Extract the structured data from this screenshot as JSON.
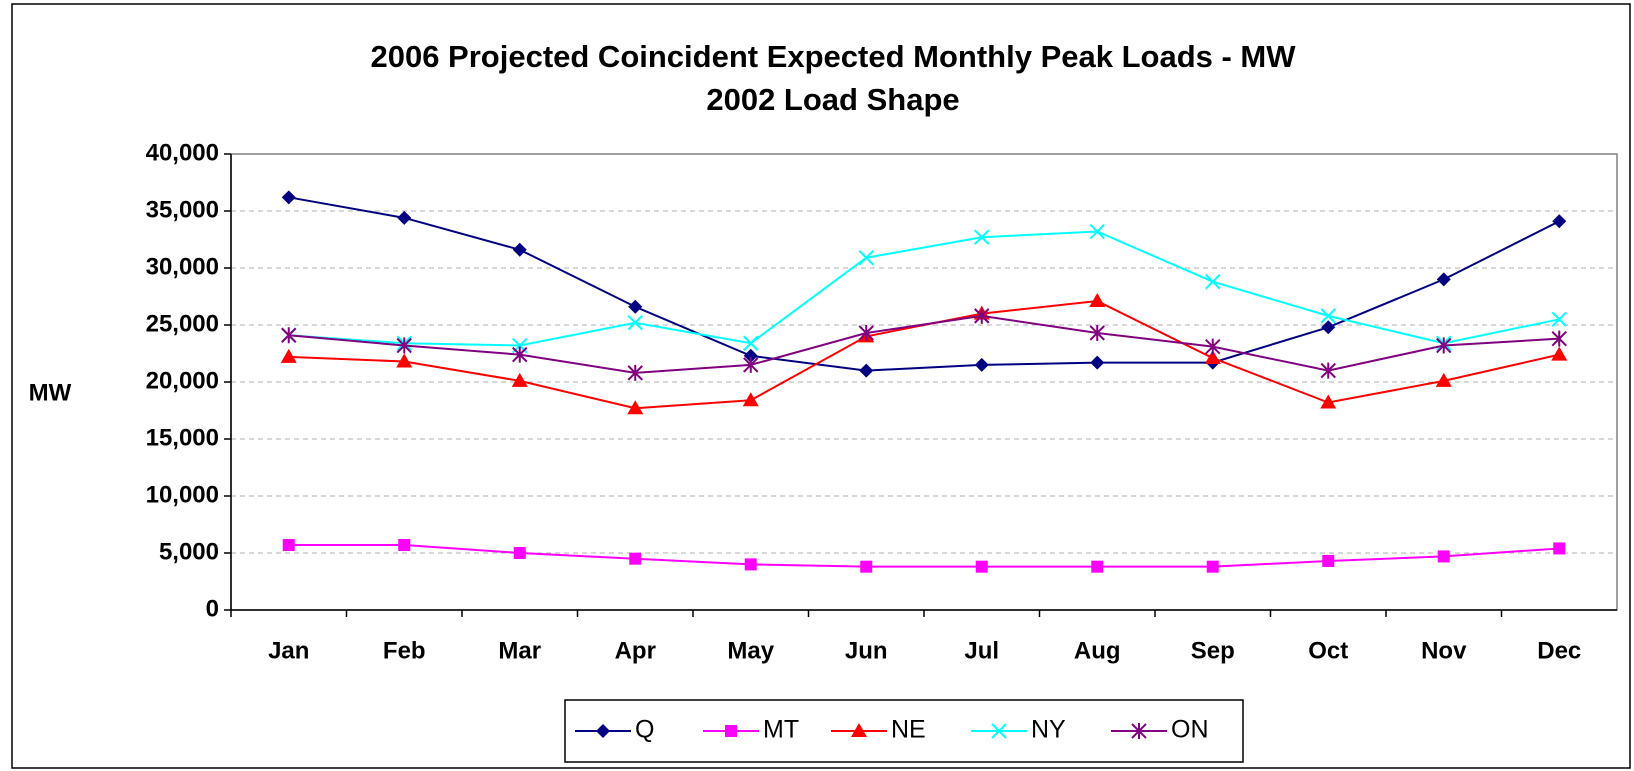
{
  "chart_data": {
    "type": "line",
    "title": "2006 Projected Coincident Expected Monthly Peak Loads - MW",
    "subtitle": "2002 Load Shape",
    "y_label": "MW",
    "categories": [
      "Jan",
      "Feb",
      "Mar",
      "Apr",
      "May",
      "Jun",
      "Jul",
      "Aug",
      "Sep",
      "Oct",
      "Nov",
      "Dec"
    ],
    "series": [
      {
        "name": "Q",
        "color": "#000080",
        "marker": "diamond",
        "values": [
          36200,
          34400,
          31600,
          26600,
          22300,
          21000,
          21500,
          21700,
          21700,
          24800,
          29000,
          34100
        ]
      },
      {
        "name": "MT",
        "color": "#ff00ff",
        "marker": "square",
        "values": [
          5700,
          5700,
          5000,
          4500,
          4000,
          3800,
          3800,
          3800,
          3800,
          4300,
          4700,
          5400
        ]
      },
      {
        "name": "NE",
        "color": "#ff0000",
        "marker": "triangle",
        "values": [
          22200,
          21800,
          20100,
          17700,
          18400,
          24000,
          26000,
          27100,
          22100,
          18200,
          20100,
          22400
        ]
      },
      {
        "name": "NY",
        "color": "#00ffff",
        "marker": "x",
        "values": [
          24100,
          23400,
          23200,
          25200,
          23400,
          30900,
          32700,
          33200,
          28800,
          25800,
          23400,
          25500
        ]
      },
      {
        "name": "ON",
        "color": "#800080",
        "marker": "star",
        "values": [
          24100,
          23200,
          22400,
          20800,
          21500,
          24300,
          25800,
          24300,
          23100,
          21000,
          23200,
          23800
        ]
      }
    ],
    "ylim": [
      0,
      40000
    ],
    "yticks": [
      0,
      {
        "value": 5000,
        "label": "5,000"
      },
      {
        "value": 10000,
        "label": "10,000"
      },
      {
        "value": 15000,
        "label": "15,000"
      },
      {
        "value": 20000,
        "label": "20,000"
      },
      {
        "value": 25000,
        "label": "25,000"
      },
      {
        "value": 30000,
        "label": "30,000"
      },
      {
        "value": 35000,
        "label": "35,000"
      },
      {
        "value": 40000,
        "label": "40,000"
      }
    ],
    "grid": true,
    "legend": "bottom"
  }
}
